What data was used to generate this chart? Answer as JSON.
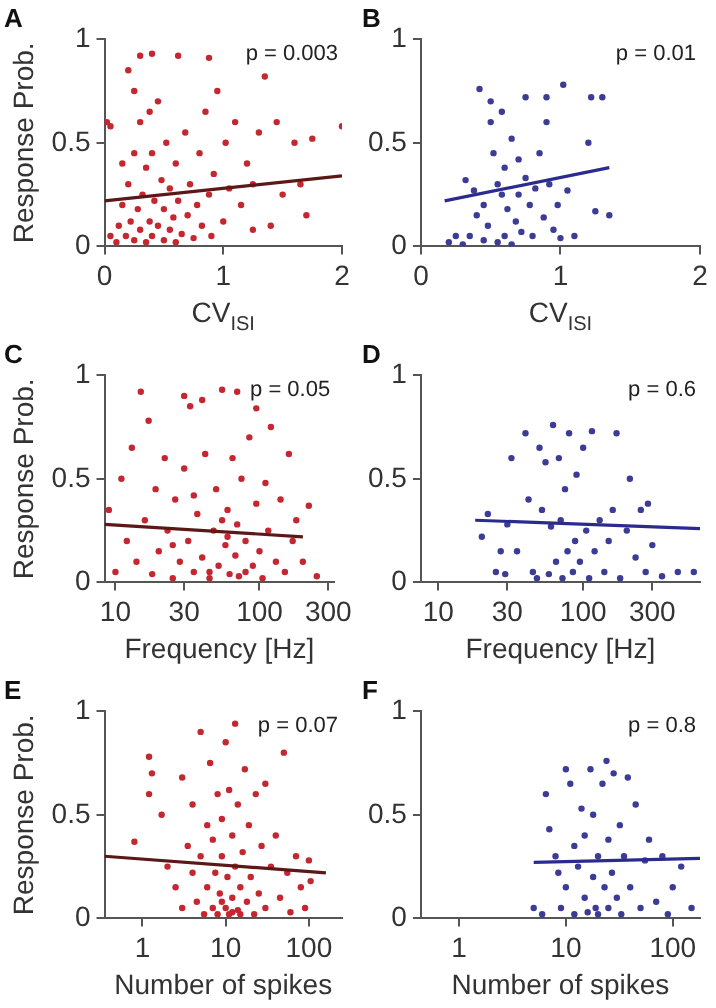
{
  "chart_data": [
    {
      "type": "scatter",
      "title": "A",
      "xlabel": "CV$_{ISI}$",
      "ylabel": "Response Prob.",
      "marker": "circle",
      "xlim": [
        0,
        2
      ],
      "xticks": [
        0,
        1,
        2
      ],
      "ylim": [
        0,
        1
      ],
      "yticks": [
        0,
        0.5,
        1
      ],
      "annotations": [
        "p = 0.003"
      ],
      "series": [
        {
          "color": "#c42730",
          "x": [
            0.05,
            0.1,
            0.12,
            0.15,
            0.18,
            0.2,
            0.22,
            0.25,
            0.25,
            0.28,
            0.3,
            0.3,
            0.32,
            0.35,
            0.35,
            0.38,
            0.4,
            0.4,
            0.42,
            0.45,
            0.45,
            0.48,
            0.5,
            0.5,
            0.52,
            0.55,
            0.55,
            0.58,
            0.6,
            0.6,
            0.62,
            0.65,
            0.68,
            0.7,
            0.72,
            0.75,
            0.78,
            0.8,
            0.82,
            0.85,
            0.88,
            0.9,
            0.92,
            0.95,
            1.0,
            1.02,
            1.05,
            1.1,
            1.15,
            1.2,
            1.25,
            1.3,
            1.35,
            1.45,
            1.5,
            1.6,
            1.65,
            1.7,
            1.75,
            2.0,
            0.2,
            0.3,
            0.4,
            0.62,
            0.88,
            0.02,
            0.05,
            0.15,
            0.25,
            0.38,
            1.25,
            1.4
          ],
          "values": [
            0.05,
            0.02,
            0.1,
            0.2,
            0.05,
            0.3,
            0.12,
            0.03,
            0.45,
            0.18,
            0.08,
            0.6,
            0.25,
            0.02,
            0.38,
            0.12,
            0.05,
            0.45,
            0.22,
            0.7,
            0.1,
            0.32,
            0.03,
            0.18,
            0.5,
            0.08,
            0.28,
            0.14,
            0.4,
            0.02,
            0.22,
            0.06,
            0.55,
            0.15,
            0.3,
            0.04,
            0.2,
            0.45,
            0.1,
            0.65,
            0.25,
            0.05,
            0.35,
            0.75,
            0.12,
            0.5,
            0.28,
            0.6,
            0.2,
            0.4,
            0.08,
            0.55,
            0.82,
            0.6,
            0.25,
            0.5,
            0.3,
            0.15,
            0.52,
            0.58,
            0.85,
            0.92,
            0.93,
            0.92,
            0.91,
            0.6,
            0.58,
            0.4,
            0.75,
            0.65,
            0.3,
            0.1
          ]
        },
        {
          "type": "line",
          "marker": "none",
          "color": "#5c1717",
          "x": [
            0,
            2
          ],
          "values": [
            0.22,
            0.34
          ]
        }
      ]
    },
    {
      "type": "scatter",
      "title": "B",
      "xlabel": "CV$_{ISI}$",
      "marker": "circle",
      "xlim": [
        0,
        2
      ],
      "xticks": [
        0,
        1,
        2
      ],
      "ylim": [
        0,
        1
      ],
      "yticks": [
        0,
        0.5,
        1
      ],
      "annotations": [
        "p = 0.01"
      ],
      "series": [
        {
          "color": "#3c3c96",
          "x": [
            0.2,
            0.25,
            0.3,
            0.32,
            0.35,
            0.38,
            0.4,
            0.42,
            0.45,
            0.45,
            0.48,
            0.5,
            0.5,
            0.52,
            0.55,
            0.55,
            0.58,
            0.58,
            0.6,
            0.6,
            0.62,
            0.65,
            0.65,
            0.68,
            0.7,
            0.7,
            0.72,
            0.75,
            0.75,
            0.78,
            0.8,
            0.82,
            0.85,
            0.88,
            0.9,
            0.92,
            0.95,
            0.98,
            1.0,
            1.02,
            1.05,
            1.1,
            1.2,
            1.22,
            1.25,
            1.3,
            1.35,
            0.9
          ],
          "values": [
            0.02,
            0.05,
            0.01,
            0.32,
            0.05,
            0.27,
            0.15,
            0.76,
            0.03,
            0.2,
            0.1,
            0.7,
            0.6,
            0.45,
            0.02,
            0.3,
            0.25,
            0.65,
            0.05,
            0.38,
            0.18,
            0.01,
            0.52,
            0.12,
            0.42,
            0.25,
            0.07,
            0.33,
            0.72,
            0.2,
            0.05,
            0.28,
            0.45,
            0.14,
            0.72,
            0.3,
            0.08,
            0.2,
            0.04,
            0.78,
            0.27,
            0.05,
            0.5,
            0.72,
            0.17,
            0.72,
            0.15,
            0.6
          ]
        },
        {
          "type": "line",
          "marker": "none",
          "color": "#2b2b8f",
          "x": [
            0.17,
            1.35
          ],
          "values": [
            0.22,
            0.38
          ]
        }
      ]
    },
    {
      "type": "scatter",
      "title": "C",
      "xlabel": "Frequency [Hz]",
      "ylabel": "Response Prob.",
      "marker": "circle",
      "log": "x",
      "xlim": [
        8.4,
        330
      ],
      "xticks": [
        10,
        30,
        100,
        300
      ],
      "ylim": [
        0,
        1
      ],
      "yticks": [
        0,
        0.5,
        1
      ],
      "annotations": [
        "p = 0.05"
      ],
      "series": [
        {
          "color": "#c42730",
          "x": [
            9,
            10,
            11,
            12,
            13,
            14,
            15,
            16,
            17,
            18,
            19,
            20,
            22,
            23,
            25,
            26,
            28,
            30,
            32,
            33,
            35,
            37,
            40,
            42,
            45,
            48,
            50,
            52,
            55,
            58,
            60,
            62,
            65,
            68,
            70,
            72,
            75,
            80,
            85,
            90,
            95,
            100,
            105,
            110,
            115,
            120,
            130,
            140,
            150,
            160,
            170,
            180,
            200,
            220,
            250,
            40,
            70,
            30,
            95,
            55,
            45,
            80,
            60,
            35,
            25
          ],
          "values": [
            0.35,
            0.05,
            0.5,
            0.2,
            0.65,
            0.1,
            0.92,
            0.3,
            0.78,
            0.04,
            0.45,
            0.15,
            0.6,
            0.25,
            0.02,
            0.4,
            0.1,
            0.55,
            0.2,
            0.85,
            0.05,
            0.33,
            0.12,
            0.62,
            0.02,
            0.25,
            0.45,
            0.08,
            0.93,
            0.18,
            0.35,
            0.04,
            0.6,
            0.13,
            0.28,
            0.03,
            0.5,
            0.2,
            0.7,
            0.08,
            0.38,
            0.15,
            0.02,
            0.48,
            0.25,
            0.75,
            0.1,
            0.4,
            0.05,
            0.62,
            0.2,
            0.3,
            0.1,
            0.37,
            0.03,
            0.88,
            0.92,
            0.9,
            0.84,
            0.3,
            0.05,
            0.05,
            0.22,
            0.42,
            0.18
          ]
        },
        {
          "type": "line",
          "marker": "none",
          "color": "#5c1717",
          "x": [
            8.4,
            200
          ],
          "values": [
            0.28,
            0.22
          ]
        }
      ]
    },
    {
      "type": "scatter",
      "title": "D",
      "xlabel": "Frequency [Hz]",
      "marker": "circle",
      "log": "x",
      "xlim": [
        7.6,
        640
      ],
      "xticks": [
        10,
        30,
        100,
        300
      ],
      "ylim": [
        0,
        1
      ],
      "yticks": [
        0,
        0.5,
        1
      ],
      "annotations": [
        "p = 0.6"
      ],
      "series": [
        {
          "color": "#3c3c96",
          "x": [
            20,
            22,
            25,
            27,
            29,
            30,
            32,
            35,
            40,
            42,
            45,
            48,
            50,
            52,
            55,
            58,
            60,
            62,
            65,
            68,
            70,
            72,
            75,
            78,
            80,
            85,
            88,
            90,
            95,
            100,
            105,
            110,
            115,
            120,
            130,
            140,
            150,
            160,
            170,
            180,
            200,
            210,
            230,
            250,
            270,
            280,
            300,
            350,
            450,
            580
          ],
          "values": [
            0.22,
            0.33,
            0.05,
            0.15,
            0.04,
            0.28,
            0.6,
            0.15,
            0.72,
            0.4,
            0.05,
            0.02,
            0.65,
            0.35,
            0.58,
            0.04,
            0.27,
            0.76,
            0.1,
            0.6,
            0.3,
            0.02,
            0.45,
            0.15,
            0.72,
            0.05,
            0.2,
            0.52,
            0.1,
            0.65,
            0.25,
            0.02,
            0.73,
            0.15,
            0.3,
            0.05,
            0.2,
            0.35,
            0.72,
            0.02,
            0.25,
            0.5,
            0.12,
            0.35,
            0.05,
            0.38,
            0.18,
            0.03,
            0.05,
            0.05
          ]
        },
        {
          "type": "line",
          "marker": "none",
          "color": "#2b2b8f",
          "x": [
            18,
            640
          ],
          "values": [
            0.3,
            0.26
          ]
        }
      ]
    },
    {
      "type": "scatter",
      "title": "E",
      "xlabel": "Number of spikes",
      "ylabel": "Response Prob.",
      "marker": "circle",
      "log": "x",
      "xlim": [
        0.35,
        250
      ],
      "xticks": [
        1,
        10,
        100
      ],
      "ylim": [
        0,
        1
      ],
      "yticks": [
        0,
        0.5,
        1
      ],
      "annotations": [
        "p = 0.07"
      ],
      "series": [
        {
          "color": "#c42730",
          "x": [
            0.8,
            1.2,
            1.2,
            1.3,
            1.7,
            2,
            2.5,
            3,
            3,
            3.5,
            4,
            4,
            4.5,
            5,
            5,
            5.5,
            6,
            6,
            6.5,
            7,
            7,
            7.5,
            8,
            8,
            8.5,
            9,
            9,
            10,
            10,
            10.5,
            11,
            11,
            12,
            12,
            13,
            13,
            14,
            14,
            15,
            16,
            17,
            18,
            19,
            20,
            22,
            23,
            25,
            27,
            30,
            30,
            35,
            40,
            45,
            50,
            55,
            60,
            70,
            80,
            90,
            100,
            105,
            12,
            9,
            15
          ],
          "values": [
            0.37,
            0.78,
            0.6,
            0.7,
            0.5,
            0.25,
            0.15,
            0.68,
            0.05,
            0.35,
            0.22,
            0.55,
            0.08,
            0.9,
            0.3,
            0.02,
            0.45,
            0.15,
            0.75,
            0.05,
            0.38,
            0.22,
            0.6,
            0.02,
            0.12,
            0.48,
            0.3,
            0.05,
            0.85,
            0.2,
            0.62,
            0.02,
            0.4,
            0.1,
            0.94,
            0.25,
            0.55,
            0.04,
            0.15,
            0.32,
            0.72,
            0.08,
            0.45,
            0.2,
            0.02,
            0.6,
            0.12,
            0.35,
            0.65,
            0.05,
            0.25,
            0.4,
            0.1,
            0.8,
            0.22,
            0.03,
            0.3,
            0.15,
            0.05,
            0.28,
            0.18,
            0.03,
            0.08,
            0.02
          ]
        },
        {
          "type": "line",
          "marker": "none",
          "color": "#5c1717",
          "x": [
            0.35,
            160
          ],
          "values": [
            0.3,
            0.22
          ]
        }
      ]
    },
    {
      "type": "scatter",
      "title": "F",
      "xlabel": "Number of spikes",
      "marker": "circle",
      "log": "x",
      "xlim": [
        0.44,
        180
      ],
      "xticks": [
        1,
        10,
        100
      ],
      "ylim": [
        0,
        1
      ],
      "yticks": [
        0,
        0.5,
        1
      ],
      "annotations": [
        "p = 0.8"
      ],
      "series": [
        {
          "color": "#3c3c96",
          "x": [
            5,
            6,
            6.5,
            7,
            8,
            8.5,
            9,
            10,
            10,
            11,
            12,
            12,
            13,
            14,
            15,
            15,
            16,
            17,
            18,
            18,
            19,
            20,
            20,
            22,
            23,
            24,
            25,
            25,
            27,
            28,
            30,
            32,
            33,
            35,
            38,
            40,
            45,
            50,
            55,
            60,
            70,
            80,
            90,
            100,
            120,
            150
          ],
          "values": [
            0.05,
            0.02,
            0.6,
            0.43,
            0.3,
            0.22,
            0.05,
            0.72,
            0.15,
            0.65,
            0.35,
            0.02,
            0.25,
            0.53,
            0.1,
            0.4,
            0.03,
            0.72,
            0.2,
            0.5,
            0.05,
            0.3,
            0.02,
            0.65,
            0.15,
            0.76,
            0.38,
            0.05,
            0.22,
            0.7,
            0.1,
            0.45,
            0.02,
            0.3,
            0.68,
            0.15,
            0.55,
            0.05,
            0.28,
            0.38,
            0.08,
            0.3,
            0.02,
            0.15,
            0.25,
            0.05
          ]
        },
        {
          "type": "line",
          "marker": "none",
          "color": "#2b2b8f",
          "x": [
            5,
            180
          ],
          "values": [
            0.27,
            0.29
          ]
        }
      ]
    }
  ]
}
